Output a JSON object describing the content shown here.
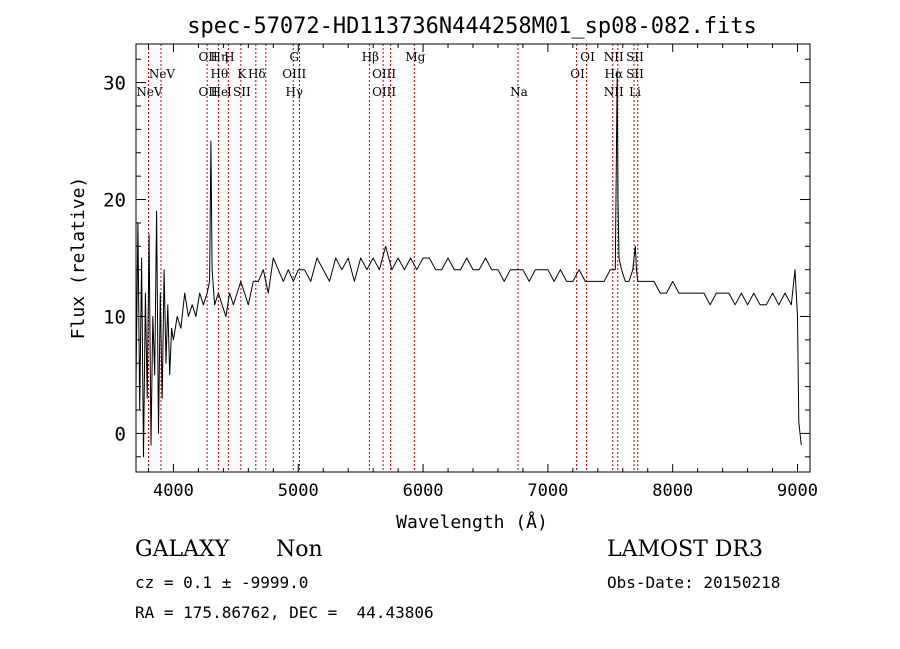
{
  "chart_data": {
    "type": "line",
    "title": "spec-57072-HD113736N444258M01_sp08-082.fits",
    "xlabel": "Wavelength (Å)",
    "ylabel": "Flux (relative)",
    "xlim": [
      3700,
      9100
    ],
    "ylim": [
      -3.3,
      33.3
    ],
    "x_ticks": [
      4000,
      5000,
      6000,
      7000,
      8000,
      9000
    ],
    "x_tick_labels": [
      "4000",
      "5000",
      "6000",
      "7000",
      "8000",
      "9000"
    ],
    "y_ticks": [
      0,
      10,
      20,
      30
    ],
    "y_tick_labels": [
      "0",
      "10",
      "20",
      "30"
    ],
    "grid": false,
    "line_color": "#000000",
    "marker_line_color": "#c00000",
    "series": [
      {
        "name": "flux",
        "x": [
          3700,
          3715,
          3730,
          3745,
          3760,
          3775,
          3790,
          3805,
          3820,
          3835,
          3850,
          3865,
          3880,
          3895,
          3910,
          3925,
          3940,
          3955,
          3970,
          3985,
          4000,
          4030,
          4060,
          4090,
          4120,
          4150,
          4180,
          4210,
          4240,
          4270,
          4290,
          4300,
          4310,
          4330,
          4360,
          4390,
          4420,
          4450,
          4480,
          4510,
          4540,
          4570,
          4600,
          4640,
          4680,
          4720,
          4760,
          4800,
          4840,
          4880,
          4920,
          4960,
          5000,
          5050,
          5100,
          5150,
          5200,
          5250,
          5300,
          5350,
          5400,
          5450,
          5500,
          5550,
          5600,
          5650,
          5700,
          5750,
          5800,
          5850,
          5900,
          5950,
          6000,
          6050,
          6100,
          6150,
          6200,
          6250,
          6300,
          6350,
          6400,
          6450,
          6500,
          6550,
          6600,
          6650,
          6700,
          6750,
          6800,
          6850,
          6900,
          6950,
          7000,
          7050,
          7100,
          7150,
          7200,
          7250,
          7300,
          7350,
          7400,
          7450,
          7500,
          7540,
          7555,
          7562,
          7570,
          7590,
          7620,
          7650,
          7680,
          7700,
          7710,
          7720,
          7750,
          7800,
          7850,
          7900,
          7950,
          8000,
          8050,
          8100,
          8150,
          8200,
          8250,
          8300,
          8350,
          8400,
          8450,
          8500,
          8550,
          8600,
          8650,
          8700,
          8750,
          8800,
          8850,
          8900,
          8950,
          8980,
          9000,
          9010,
          9020,
          9030
        ],
        "y": [
          4,
          18,
          2,
          15,
          -2,
          12,
          3,
          17,
          -1,
          10,
          5,
          19,
          0,
          12,
          3,
          14,
          6,
          11,
          5,
          9,
          8,
          10,
          9,
          12,
          10,
          11,
          10,
          12,
          11,
          12,
          13,
          25,
          14,
          11,
          12,
          11,
          10,
          12,
          11,
          12,
          13,
          12,
          11,
          13,
          13,
          14,
          12,
          15,
          14,
          13,
          14,
          13,
          14,
          14,
          13,
          15,
          14,
          13,
          15,
          14,
          15,
          13,
          15,
          14,
          15,
          14,
          16,
          14,
          15,
          14,
          15,
          14,
          15,
          15,
          14,
          14,
          15,
          14,
          14,
          15,
          14,
          14,
          15,
          14,
          14,
          13,
          14,
          14,
          14,
          13,
          14,
          14,
          14,
          13,
          14,
          13,
          13,
          14,
          13,
          13,
          13,
          13,
          14,
          14,
          31,
          20,
          15,
          14,
          13,
          13,
          14,
          16,
          14,
          13,
          13,
          13,
          13,
          12,
          12,
          13,
          12,
          12,
          12,
          12,
          12,
          11,
          12,
          12,
          12,
          11,
          12,
          11,
          12,
          11,
          11,
          12,
          11,
          12,
          11,
          14,
          10,
          1,
          0,
          -1
        ]
      }
    ],
    "line_markers": [
      {
        "x": 3800,
        "lines": [
          null,
          null,
          "NeV"
        ]
      },
      {
        "x": 3900,
        "lines": [
          null,
          "NeV",
          null
        ]
      },
      {
        "x": 4270,
        "lines": [
          "OII",
          null,
          "OII"
        ]
      },
      {
        "x": 4360,
        "lines": [
          "Hη",
          "Hθ",
          "He"
        ]
      },
      {
        "x": 4440,
        "lines": [
          "H",
          null,
          "I"
        ]
      },
      {
        "x": 4540,
        "lines": [
          null,
          "K",
          "SII"
        ]
      },
      {
        "x": 4660,
        "lines": [
          null,
          "Hδ",
          null
        ]
      },
      {
        "x": 4740,
        "lines": [
          null,
          null,
          null
        ]
      },
      {
        "x": 4960,
        "lines": [
          "G",
          "OIII",
          "Hγ"
        ]
      },
      {
        "x": 5010,
        "lines": [
          null,
          null,
          null
        ]
      },
      {
        "x": 5570,
        "lines": [
          "Hβ",
          null,
          null
        ]
      },
      {
        "x": 5680,
        "lines": [
          null,
          "OIII",
          "OIII"
        ]
      },
      {
        "x": 5740,
        "lines": [
          null,
          null,
          null
        ]
      },
      {
        "x": 5930,
        "lines": [
          "Mg",
          null,
          null
        ]
      },
      {
        "x": 6760,
        "lines": [
          null,
          null,
          "Na"
        ]
      },
      {
        "x": 7230,
        "lines": [
          null,
          "OI",
          null
        ]
      },
      {
        "x": 7310,
        "lines": [
          "OI",
          null,
          null
        ]
      },
      {
        "x": 7520,
        "lines": [
          "NII",
          "Hα",
          "NII"
        ]
      },
      {
        "x": 7560,
        "lines": [
          null,
          null,
          null
        ]
      },
      {
        "x": 7690,
        "lines": [
          "SII",
          "SII",
          "Li"
        ]
      },
      {
        "x": 7720,
        "lines": [
          null,
          null,
          null
        ]
      }
    ]
  },
  "info": {
    "object_class": "GALAXY",
    "subclass": "Non",
    "cz_line": "cz = 0.1 ± -9999.0",
    "coords_line": "RA = 175.86762, DEC =  44.43806",
    "survey": "LAMOST DR3",
    "obs_date": "Obs-Date: 20150218"
  }
}
